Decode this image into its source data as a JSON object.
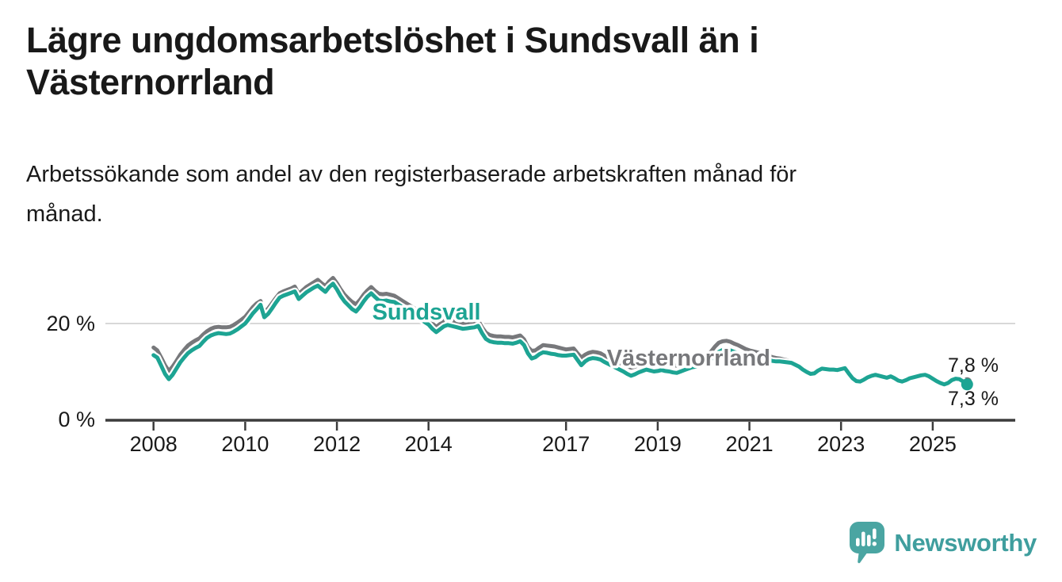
{
  "title": "Lägre ungdomsarbetslöshet i Sundsvall än i\nVästernorrland",
  "subtitle": "Arbetssökande som andel av den registerbaserade arbetskraften månad för\nmånad.",
  "branding": {
    "logo_text": "Newsworthy",
    "logo_bubble_color": "#4aa5a2",
    "logo_text_color": "#3f9e9e",
    "logo_icon": "bar-chart-speech-bubble-icon"
  },
  "chart_data": {
    "type": "line",
    "unit": "%",
    "frequency": "monthly",
    "grid": "single-horizontal-gridline-at-20",
    "legend_position": "inline-labels-on-lines",
    "xlim": [
      2006.95,
      2026.8
    ],
    "ylim": [
      0,
      31
    ],
    "x_ticks": [
      2008,
      2010,
      2012,
      2014,
      2017,
      2019,
      2021,
      2023,
      2025
    ],
    "y_ticks": [
      {
        "value": 0,
        "label": "0 %"
      },
      {
        "value": 20,
        "label": "20 %"
      }
    ],
    "axis_color": "#3c3c3c",
    "gridline_color": "#d8d8d8",
    "series": [
      {
        "name": "Västernorrland",
        "color": "#77787b",
        "end_label": "7,8 %",
        "end_value": 7.8,
        "end_dot_radius": 6,
        "start_year": 2008,
        "values": [
          15.0,
          14.4,
          12.9,
          11.3,
          10.1,
          11.0,
          12.2,
          13.5,
          14.5,
          15.4,
          16.0,
          16.5,
          16.9,
          17.7,
          18.4,
          18.9,
          19.2,
          19.3,
          19.2,
          19.2,
          19.3,
          19.7,
          20.2,
          20.8,
          21.4,
          22.4,
          23.4,
          24.2,
          24.7,
          22.4,
          23.1,
          24.2,
          25.3,
          26.3,
          26.7,
          27.0,
          27.3,
          27.7,
          26.2,
          26.9,
          27.6,
          28.1,
          28.6,
          29.1,
          28.4,
          27.8,
          28.8,
          29.5,
          28.4,
          27.1,
          26.0,
          25.2,
          24.5,
          24.0,
          24.9,
          26.0,
          26.9,
          27.6,
          26.8,
          26.2,
          26.1,
          26.2,
          26.0,
          25.8,
          25.3,
          24.8,
          24.3,
          23.8,
          23.3,
          22.8,
          22.1,
          21.4,
          20.9,
          20.0,
          19.3,
          19.9,
          20.5,
          20.9,
          20.7,
          20.5,
          20.3,
          20.1,
          20.2,
          20.3,
          20.4,
          20.6,
          19.2,
          18.1,
          17.6,
          17.4,
          17.3,
          17.3,
          17.2,
          17.2,
          17.1,
          17.3,
          17.5,
          16.7,
          15.1,
          14.3,
          14.4,
          15.0,
          15.5,
          15.4,
          15.3,
          15.2,
          15.0,
          14.8,
          14.6,
          14.7,
          14.8,
          13.8,
          12.9,
          13.5,
          13.9,
          14.1,
          14.0,
          13.8,
          13.3,
          12.9,
          12.5,
          12.2,
          11.8,
          11.5,
          11.1,
          10.8,
          11.0,
          11.3,
          11.6,
          11.8,
          11.6,
          11.4,
          11.5,
          11.7,
          11.5,
          11.4,
          11.3,
          11.2,
          11.5,
          11.8,
          12.0,
          12.2,
          12.4,
          12.6,
          13.0,
          13.5,
          14.2,
          15.2,
          16.0,
          16.3,
          16.4,
          16.2,
          15.8,
          15.5,
          15.1,
          14.7,
          14.4,
          14.2,
          14.0,
          13.8,
          13.6,
          13.3,
          13.0,
          12.8,
          12.7,
          12.5,
          12.3,
          12.1,
          11.6,
          11.2,
          10.6,
          10.1,
          9.7,
          9.8,
          10.4,
          10.8,
          10.7,
          10.6,
          10.5,
          10.4,
          10.6,
          10.8,
          9.8,
          8.8,
          8.3,
          8.2,
          8.6,
          9.1,
          9.4,
          9.6,
          9.4,
          9.2,
          9.0,
          9.2,
          8.8,
          8.4,
          8.2,
          8.5,
          8.8,
          9.0,
          9.2,
          9.4,
          9.5,
          9.2,
          8.7,
          8.2,
          7.8,
          7.6,
          7.9,
          8.4,
          8.7,
          8.6,
          8.2,
          7.8
        ]
      },
      {
        "name": "Sundsvall",
        "color": "#1da493",
        "end_label": "7,3 %",
        "end_value": 7.3,
        "end_dot_radius": 7.5,
        "start_year": 2008,
        "values": [
          13.4,
          12.9,
          11.2,
          9.5,
          8.4,
          9.3,
          10.6,
          11.9,
          12.9,
          13.8,
          14.4,
          14.9,
          15.3,
          16.2,
          17.0,
          17.5,
          17.8,
          18.0,
          17.9,
          17.8,
          17.9,
          18.3,
          18.8,
          19.4,
          20.0,
          21.0,
          22.1,
          23.0,
          23.9,
          21.3,
          22.0,
          23.1,
          24.3,
          25.4,
          25.8,
          26.1,
          26.4,
          26.7,
          25.1,
          25.8,
          26.5,
          27.0,
          27.5,
          27.9,
          27.2,
          26.6,
          27.6,
          28.3,
          27.1,
          25.7,
          24.6,
          23.8,
          23.0,
          22.5,
          23.4,
          24.6,
          25.6,
          26.3,
          25.5,
          24.8,
          24.7,
          24.8,
          24.6,
          24.5,
          24.0,
          23.5,
          23.0,
          22.5,
          22.0,
          21.5,
          20.9,
          20.3,
          19.8,
          18.9,
          18.2,
          18.8,
          19.4,
          19.7,
          19.5,
          19.3,
          19.1,
          18.9,
          19.0,
          19.1,
          19.2,
          19.5,
          18.0,
          16.8,
          16.3,
          16.1,
          16.0,
          16.0,
          15.9,
          15.9,
          15.8,
          16.0,
          16.3,
          15.5,
          13.8,
          12.7,
          13.0,
          13.6,
          14.0,
          13.9,
          13.7,
          13.6,
          13.4,
          13.3,
          13.3,
          13.4,
          13.5,
          12.4,
          11.3,
          12.1,
          12.6,
          12.8,
          12.7,
          12.5,
          12.0,
          11.6,
          11.2,
          10.8,
          10.4,
          10.0,
          9.5,
          9.1,
          9.4,
          9.8,
          10.1,
          10.4,
          10.2,
          10.0,
          10.1,
          10.3,
          10.1,
          10.0,
          9.8,
          9.7,
          10.0,
          10.3,
          10.6,
          10.9,
          11.0,
          11.2,
          11.6,
          12.0,
          12.6,
          13.4,
          14.1,
          14.5,
          14.6,
          14.4,
          14.1,
          13.8,
          13.5,
          13.2,
          13.0,
          12.9,
          12.8,
          12.7,
          12.5,
          12.4,
          12.2,
          12.1,
          12.1,
          12.0,
          11.9,
          11.8,
          11.4,
          11.0,
          10.4,
          9.9,
          9.5,
          9.6,
          10.2,
          10.6,
          10.5,
          10.4,
          10.4,
          10.3,
          10.5,
          10.7,
          9.6,
          8.6,
          8.0,
          7.9,
          8.3,
          8.8,
          9.1,
          9.3,
          9.1,
          8.9,
          8.7,
          9.0,
          8.6,
          8.1,
          7.9,
          8.2,
          8.6,
          8.8,
          9.0,
          9.2,
          9.3,
          9.0,
          8.5,
          8.0,
          7.6,
          7.3,
          7.6,
          8.2,
          8.5,
          8.4,
          7.9,
          7.3
        ]
      }
    ],
    "annotations": [
      {
        "text": "Sundsvall",
        "x": 2012.77,
        "y": 20.8,
        "color": "#1da493",
        "role": "series-label"
      },
      {
        "text": "Västernorrland",
        "x": 2017.89,
        "y": 11.2,
        "color": "#77787b",
        "role": "series-label"
      },
      {
        "text": "7,8 %",
        "x": 2025.33,
        "y": 9.95,
        "color": "#1a1a1a",
        "role": "end-value-label"
      },
      {
        "text": "7,3 %",
        "x": 2025.33,
        "y": 3.0,
        "color": "#1a1a1a",
        "role": "end-value-label"
      }
    ]
  }
}
